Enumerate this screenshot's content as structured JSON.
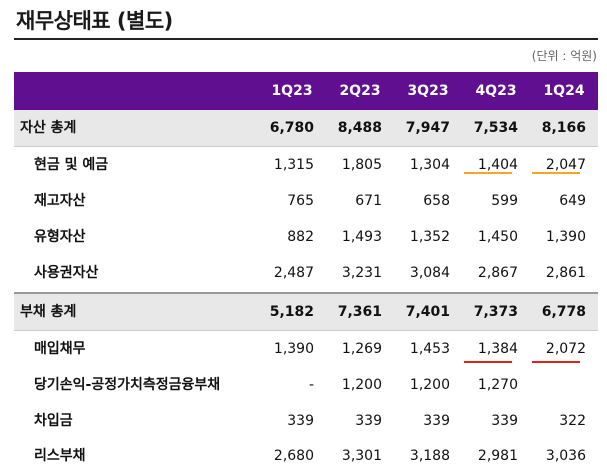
{
  "title": "재무상태표 (별도)",
  "unit": "(단위 : 억원)",
  "columns": [
    "1Q23",
    "2Q23",
    "3Q23",
    "4Q23",
    "1Q24"
  ],
  "rows": [
    {
      "label": "자산 총계",
      "values": [
        "6,780",
        "8,488",
        "7,947",
        "7,534",
        "8,166"
      ],
      "kind": "total"
    },
    {
      "label": "현금 및 예금",
      "values": [
        "1,315",
        "1,805",
        "1,304",
        "1,404",
        "2,047"
      ],
      "kind": "sub"
    },
    {
      "label": "재고자산",
      "values": [
        "765",
        "671",
        "658",
        "599",
        "649"
      ],
      "kind": "sub"
    },
    {
      "label": "유형자산",
      "values": [
        "882",
        "1,493",
        "1,352",
        "1,450",
        "1,390"
      ],
      "kind": "sub"
    },
    {
      "label": "사용권자산",
      "values": [
        "2,487",
        "3,231",
        "3,084",
        "2,867",
        "2,861"
      ],
      "kind": "sub"
    },
    {
      "label": "부채 총계",
      "values": [
        "5,182",
        "7,361",
        "7,401",
        "7,373",
        "6,778"
      ],
      "kind": "total"
    },
    {
      "label": "매입채무",
      "values": [
        "1,390",
        "1,269",
        "1,453",
        "1,384",
        "2,072"
      ],
      "kind": "sub"
    },
    {
      "label": "당기손익-공정가치측정금융부채",
      "values": [
        "-",
        "1,200",
        "1,200",
        "1,270",
        ""
      ],
      "kind": "sub"
    },
    {
      "label": "차입금",
      "values": [
        "339",
        "339",
        "339",
        "339",
        "322"
      ],
      "kind": "sub"
    },
    {
      "label": "리스부채",
      "values": [
        "2,680",
        "3,301",
        "3,188",
        "2,981",
        "3,036"
      ],
      "kind": "sub"
    }
  ],
  "colors": {
    "header": "#5f0f8f",
    "total_row": "#e8e8e8",
    "cash_underline": "#f5a623",
    "payables_underline": "#e0201b"
  }
}
